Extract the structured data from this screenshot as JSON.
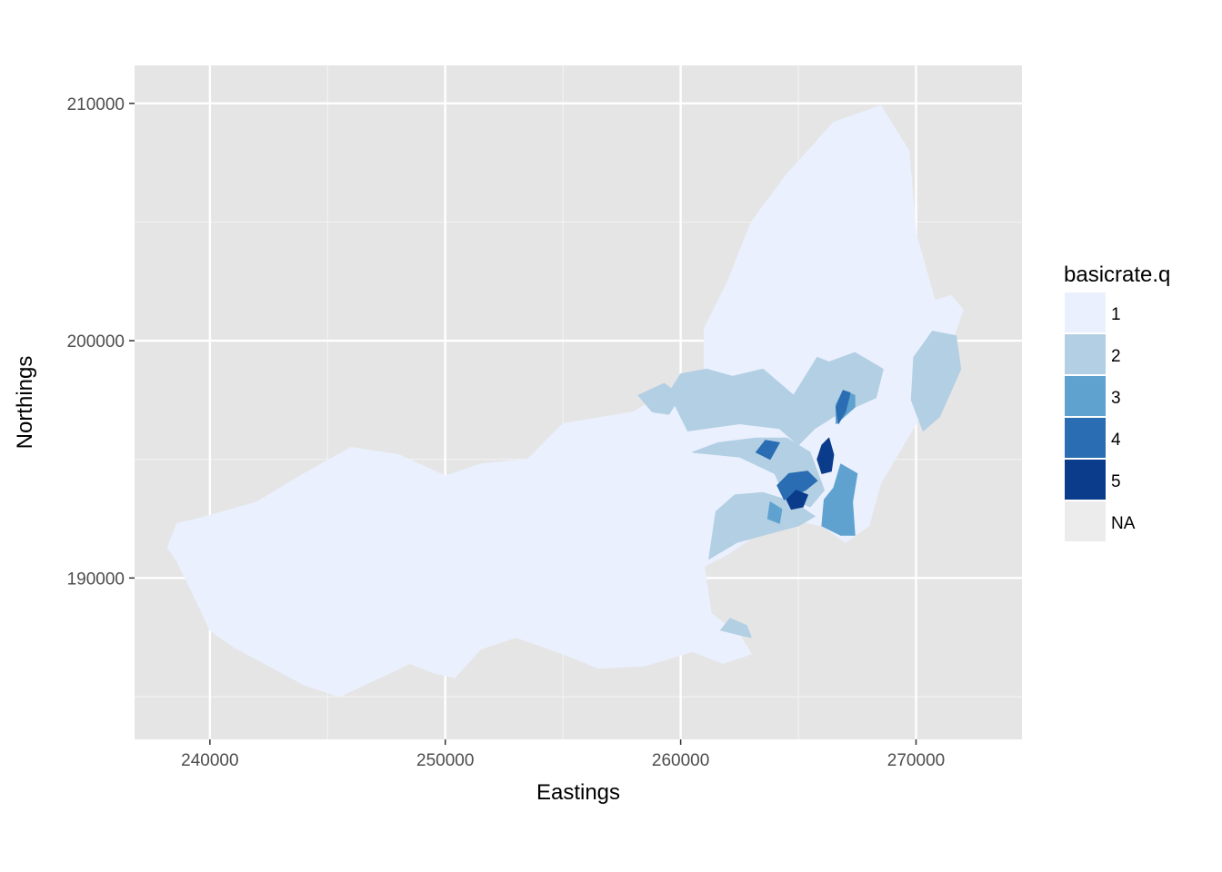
{
  "chart_data": {
    "type": "map",
    "xlabel": "Eastings",
    "ylabel": "Northings",
    "xlim": [
      236800,
      274500
    ],
    "ylim": [
      183200,
      211600
    ],
    "x_ticks": [
      {
        "value": 240000,
        "label": "240000"
      },
      {
        "value": 250000,
        "label": "250000"
      },
      {
        "value": 260000,
        "label": "260000"
      },
      {
        "value": 270000,
        "label": "270000"
      }
    ],
    "y_ticks": [
      {
        "value": 190000,
        "label": "190000"
      },
      {
        "value": 200000,
        "label": "200000"
      },
      {
        "value": 210000,
        "label": "210000"
      }
    ],
    "x_minor": [
      245000,
      255000,
      265000
    ],
    "y_minor": [
      185000,
      195000,
      205000
    ],
    "grid": true,
    "panel_background": "#e5e5e5",
    "legend": {
      "title": "basicrate.q",
      "placement": "right",
      "items": [
        {
          "label": "1",
          "color": "#eaf0fd"
        },
        {
          "label": "2",
          "color": "#b2cfe4"
        },
        {
          "label": "3",
          "color": "#5fa2d0"
        },
        {
          "label": "4",
          "color": "#2a6db3"
        },
        {
          "label": "5",
          "color": "#0b3b8b"
        },
        {
          "label": "NA",
          "color": "#ececec"
        }
      ]
    },
    "regions": [
      {
        "class": "1",
        "points": [
          [
            240200,
            192700
          ],
          [
            242000,
            193200
          ],
          [
            244000,
            194400
          ],
          [
            246000,
            195500
          ],
          [
            248000,
            195200
          ],
          [
            250000,
            194300
          ],
          [
            251500,
            194800
          ],
          [
            253500,
            195000
          ],
          [
            255000,
            196500
          ],
          [
            258000,
            197000
          ],
          [
            259000,
            197600
          ],
          [
            261000,
            198800
          ],
          [
            261000,
            200500
          ],
          [
            262000,
            202500
          ],
          [
            263000,
            205000
          ],
          [
            264500,
            207000
          ],
          [
            266500,
            209200
          ],
          [
            268500,
            209900
          ],
          [
            269700,
            208000
          ],
          [
            270000,
            204500
          ],
          [
            270800,
            201700
          ],
          [
            271500,
            201900
          ],
          [
            272000,
            201300
          ],
          [
            271000,
            198500
          ],
          [
            270000,
            196500
          ],
          [
            268500,
            194000
          ],
          [
            268000,
            192200
          ],
          [
            267000,
            191500
          ],
          [
            266000,
            192200
          ],
          [
            265000,
            192400
          ],
          [
            263500,
            192000
          ],
          [
            262000,
            191000
          ],
          [
            261000,
            190500
          ],
          [
            261300,
            188500
          ],
          [
            262500,
            187600
          ],
          [
            263000,
            186800
          ],
          [
            261800,
            186400
          ],
          [
            260500,
            186900
          ],
          [
            258500,
            186300
          ],
          [
            256500,
            186200
          ],
          [
            255000,
            186800
          ],
          [
            253000,
            187500
          ],
          [
            251500,
            187000
          ],
          [
            250400,
            185800
          ],
          [
            249500,
            186000
          ],
          [
            248500,
            186400
          ],
          [
            247000,
            185700
          ],
          [
            245500,
            185000
          ],
          [
            244000,
            185500
          ],
          [
            242500,
            186300
          ],
          [
            241000,
            187100
          ],
          [
            240000,
            187800
          ],
          [
            239300,
            189300
          ],
          [
            238600,
            190700
          ],
          [
            238200,
            191300
          ],
          [
            238600,
            192300
          ],
          [
            239500,
            192500
          ]
        ]
      },
      {
        "class": "2",
        "points": [
          [
            260300,
            196200
          ],
          [
            262500,
            196500
          ],
          [
            264200,
            196300
          ],
          [
            265000,
            195600
          ],
          [
            265700,
            196300
          ],
          [
            266500,
            196800
          ],
          [
            268300,
            197600
          ],
          [
            268600,
            198800
          ],
          [
            267400,
            199500
          ],
          [
            266300,
            199100
          ],
          [
            265800,
            199300
          ],
          [
            264800,
            197700
          ],
          [
            263500,
            198800
          ],
          [
            262200,
            198500
          ],
          [
            261100,
            198800
          ],
          [
            260000,
            198600
          ],
          [
            259500,
            197800
          ]
        ]
      },
      {
        "class": "2",
        "points": [
          [
            269800,
            197500
          ],
          [
            270300,
            196200
          ],
          [
            271000,
            196800
          ],
          [
            271900,
            198800
          ],
          [
            271700,
            200200
          ],
          [
            270700,
            200400
          ],
          [
            269900,
            199300
          ]
        ]
      },
      {
        "class": "2",
        "points": [
          [
            260500,
            195300
          ],
          [
            262500,
            195100
          ],
          [
            264000,
            194400
          ],
          [
            264400,
            193500
          ],
          [
            265500,
            193000
          ],
          [
            266100,
            193700
          ],
          [
            265500,
            195300
          ],
          [
            264500,
            195900
          ],
          [
            263200,
            195900
          ],
          [
            261600,
            195700
          ]
        ]
      },
      {
        "class": "2",
        "points": [
          [
            261200,
            190800
          ],
          [
            262400,
            191500
          ],
          [
            263500,
            191800
          ],
          [
            265000,
            192200
          ],
          [
            265700,
            192600
          ],
          [
            264800,
            193200
          ],
          [
            263500,
            193600
          ],
          [
            262300,
            193500
          ],
          [
            261500,
            192800
          ]
        ]
      },
      {
        "class": "2",
        "points": [
          [
            258200,
            197700
          ],
          [
            258800,
            197000
          ],
          [
            259500,
            196900
          ],
          [
            260000,
            197700
          ],
          [
            259300,
            198200
          ]
        ]
      },
      {
        "class": "2",
        "points": [
          [
            261700,
            187800
          ],
          [
            262500,
            187600
          ],
          [
            263000,
            187500
          ],
          [
            262800,
            188000
          ],
          [
            262100,
            188300
          ]
        ]
      },
      {
        "class": "3",
        "points": [
          [
            266000,
            192200
          ],
          [
            266800,
            191800
          ],
          [
            267400,
            191800
          ],
          [
            267300,
            193200
          ],
          [
            267500,
            194400
          ],
          [
            266800,
            194800
          ],
          [
            266500,
            193800
          ],
          [
            266100,
            193300
          ]
        ]
      },
      {
        "class": "3",
        "points": [
          [
            266600,
            196500
          ],
          [
            267400,
            197200
          ],
          [
            267400,
            197700
          ],
          [
            266900,
            197900
          ],
          [
            266600,
            197300
          ]
        ]
      },
      {
        "class": "3",
        "points": [
          [
            263700,
            192500
          ],
          [
            264200,
            192300
          ],
          [
            264300,
            192900
          ],
          [
            263800,
            193200
          ]
        ]
      },
      {
        "class": "4",
        "points": [
          [
            264400,
            193300
          ],
          [
            265300,
            193700
          ],
          [
            265800,
            194100
          ],
          [
            265400,
            194500
          ],
          [
            264600,
            194400
          ],
          [
            264100,
            193900
          ]
        ]
      },
      {
        "class": "4",
        "points": [
          [
            266700,
            196500
          ],
          [
            267000,
            197000
          ],
          [
            267200,
            197800
          ],
          [
            266900,
            197900
          ],
          [
            266600,
            197200
          ]
        ]
      },
      {
        "class": "4",
        "points": [
          [
            263200,
            195300
          ],
          [
            263800,
            195000
          ],
          [
            264200,
            195700
          ],
          [
            263600,
            195800
          ]
        ]
      },
      {
        "class": "5",
        "points": [
          [
            266000,
            194400
          ],
          [
            266400,
            194500
          ],
          [
            266500,
            195200
          ],
          [
            266300,
            195900
          ],
          [
            266000,
            195600
          ],
          [
            265800,
            195000
          ]
        ]
      },
      {
        "class": "5",
        "points": [
          [
            264700,
            192900
          ],
          [
            265200,
            193000
          ],
          [
            265400,
            193500
          ],
          [
            264900,
            193700
          ],
          [
            264500,
            193300
          ]
        ]
      }
    ]
  }
}
